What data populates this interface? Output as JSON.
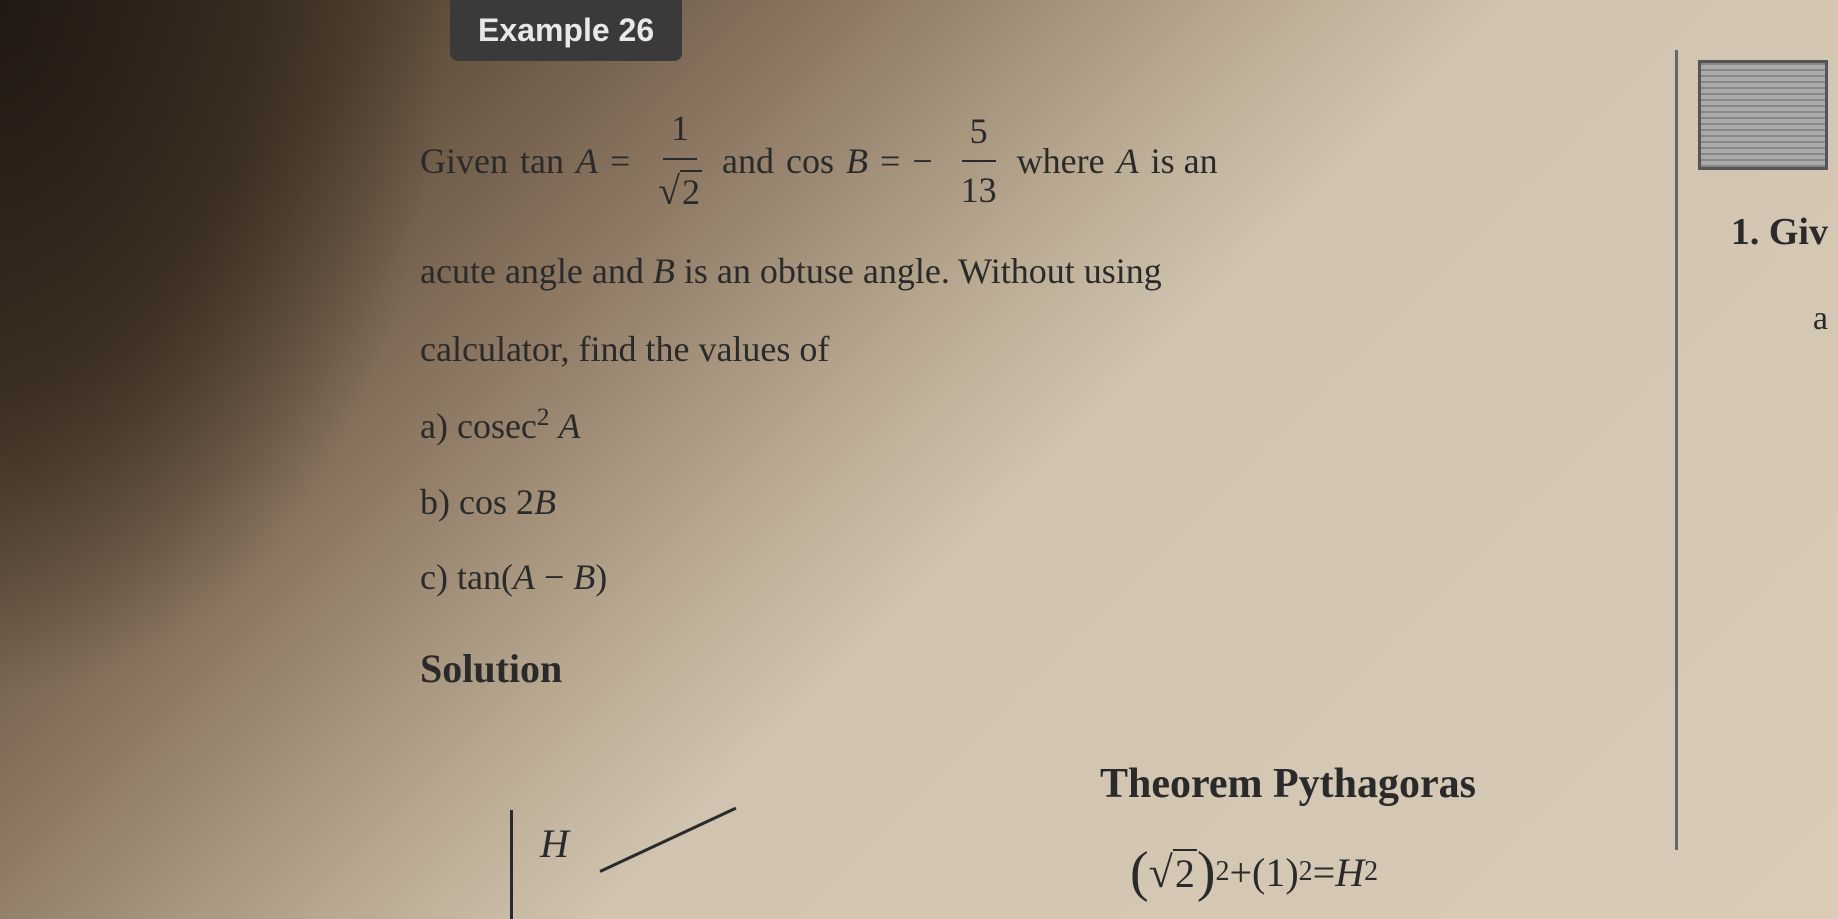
{
  "example": {
    "label": "Example 26",
    "given_prefix": "Given",
    "tan_label": "tan",
    "var_A": "A",
    "equals": "=",
    "frac1_num": "1",
    "frac1_den_radicand": "2",
    "and_text": "and",
    "cos_label": "cos",
    "var_B": "B",
    "minus": "−",
    "frac2_num": "5",
    "frac2_den": "13",
    "where_text": "where",
    "is_an_text": "is an",
    "body_line1": "acute angle and",
    "body_line1b": "is an obtuse angle. Without using",
    "body_line2": "calculator, find the values of",
    "part_a_label": "a)",
    "part_a_func": "cosec",
    "part_a_exp": "2",
    "part_b_label": "b)",
    "part_b_func": "cos",
    "part_b_arg": "2",
    "part_c_label": "c)",
    "part_c_func": "tan(",
    "part_c_mid": " − ",
    "part_c_close": ")",
    "solution_label": "Solution",
    "theorem_label": "Theorem Pythagoras",
    "eq_sqrt_radicand": "2",
    "eq_exp1": "2",
    "eq_plus": " + ",
    "eq_one": "(1)",
    "eq_exp2": "2",
    "eq_equals": " = ",
    "eq_H": "H",
    "eq_exp3": "2",
    "triangle_H": "H"
  },
  "margin": {
    "item1": "1. Giv",
    "item2": "a"
  },
  "colors": {
    "tag_bg": "#3a3a3a",
    "tag_text": "#e8e8e8",
    "body_text": "#2a2a2a",
    "page_bg_light": "#d8ccb8",
    "page_bg_dark": "#3a3228"
  },
  "typography": {
    "body_fontsize": 36,
    "heading_fontsize": 40,
    "tag_fontsize": 32
  }
}
